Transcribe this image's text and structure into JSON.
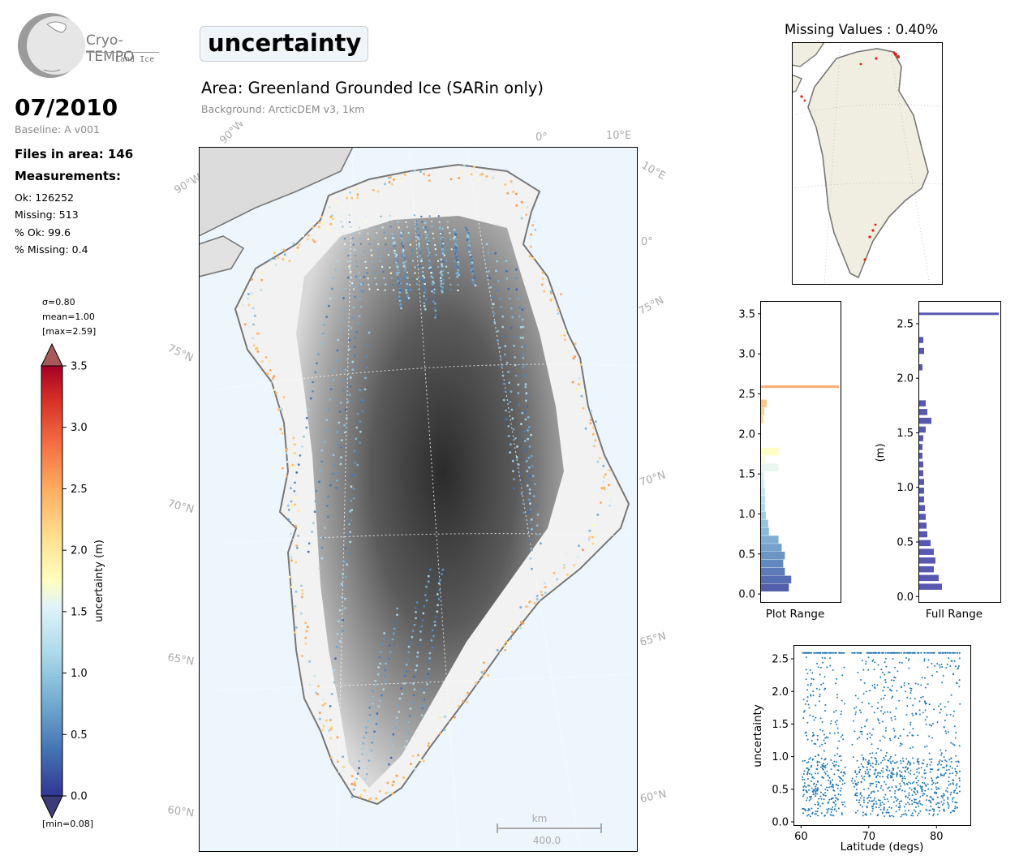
{
  "logo": {
    "name": "Cryo-TEMPO",
    "sub": "Land Ice"
  },
  "header": {
    "title": "uncertainty",
    "area": "Area: Greenland Grounded Ice (SARin only)",
    "background": "Background: ArcticDEM v3, 1km",
    "date": "07/2010",
    "baseline": "Baseline: A v001"
  },
  "stats": {
    "files": "Files in area: 146",
    "measurements_heading": "Measurements:",
    "ok": "Ok: 126252",
    "missing": "Missing: 513",
    "pct_ok": "% Ok: 99.6",
    "pct_missing": "% Missing: 0.4"
  },
  "colorbar": {
    "sigma": "σ=0.80",
    "mean": "mean=1.00",
    "max": "[max=2.59]",
    "min": "[min=0.08]",
    "label": "uncertainty (m)",
    "ticks": [
      "0.0",
      "0.5",
      "1.0",
      "1.5",
      "2.0",
      "2.5",
      "3.0",
      "3.5"
    ],
    "range": [
      0,
      3.5
    ]
  },
  "map": {
    "lon_labels": [
      "90°W",
      "90°W",
      "0°",
      "10°E",
      "10°E",
      "0°"
    ],
    "lat_labels_left": [
      "75°N",
      "70°N",
      "65°N",
      "60°N"
    ],
    "lat_labels_right": [
      "75°N",
      "70°N",
      "65°N",
      "60°N"
    ],
    "scale_unit": "km",
    "scale_value": "400.0",
    "colors": {
      "ocean": "#eef6fd",
      "coast": "#777777",
      "track_low": "#3b5bb8",
      "track_high": "#f28a4a"
    }
  },
  "inset": {
    "title": "Missing Values : 0.40%",
    "land_color": "#efeee0",
    "missing_color": "#e0201b"
  },
  "chart_data": [
    {
      "type": "bar",
      "orientation": "horizontal",
      "name": "histogram",
      "xlabel": "Plot Range",
      "ylim": [
        -0.1,
        3.65
      ],
      "yticks": [
        "0.0",
        "0.5",
        "1.0",
        "1.5",
        "2.0",
        "2.5",
        "3.0",
        "3.5"
      ],
      "bins": [
        {
          "y": 0.08,
          "w": 0.35
        },
        {
          "y": 0.18,
          "w": 0.38
        },
        {
          "y": 0.28,
          "w": 0.3
        },
        {
          "y": 0.38,
          "w": 0.28
        },
        {
          "y": 0.48,
          "w": 0.3
        },
        {
          "y": 0.58,
          "w": 0.26
        },
        {
          "y": 0.68,
          "w": 0.22
        },
        {
          "y": 0.78,
          "w": 0.1
        },
        {
          "y": 0.88,
          "w": 0.09
        },
        {
          "y": 0.98,
          "w": 0.06
        },
        {
          "y": 1.08,
          "w": 0.05
        },
        {
          "y": 1.18,
          "w": 0.05
        },
        {
          "y": 1.28,
          "w": 0.05
        },
        {
          "y": 1.38,
          "w": 0.04
        },
        {
          "y": 1.48,
          "w": 0.04
        },
        {
          "y": 1.58,
          "w": 0.22
        },
        {
          "y": 1.68,
          "w": 0.05
        },
        {
          "y": 1.78,
          "w": 0.22
        },
        {
          "y": 2.18,
          "w": 0.03
        },
        {
          "y": 2.28,
          "w": 0.04
        },
        {
          "y": 2.38,
          "w": 0.07
        },
        {
          "y": 2.59,
          "w": 0.98
        }
      ]
    },
    {
      "type": "bar",
      "orientation": "horizontal",
      "name": "histogram-full",
      "xlabel": "Full Range",
      "ylabel": "(m)",
      "ylim": [
        -0.05,
        2.7
      ],
      "yticks": [
        "0.0",
        "0.5",
        "1.0",
        "1.5",
        "2.0",
        "2.5"
      ],
      "bins": [
        {
          "y": 0.09,
          "w": 0.28
        },
        {
          "y": 0.17,
          "w": 0.24
        },
        {
          "y": 0.25,
          "w": 0.18
        },
        {
          "y": 0.33,
          "w": 0.2
        },
        {
          "y": 0.41,
          "w": 0.18
        },
        {
          "y": 0.49,
          "w": 0.14
        },
        {
          "y": 0.57,
          "w": 0.1
        },
        {
          "y": 0.65,
          "w": 0.09
        },
        {
          "y": 0.73,
          "w": 0.08
        },
        {
          "y": 0.81,
          "w": 0.07
        },
        {
          "y": 0.89,
          "w": 0.06
        },
        {
          "y": 0.97,
          "w": 0.06
        },
        {
          "y": 1.05,
          "w": 0.06
        },
        {
          "y": 1.13,
          "w": 0.05
        },
        {
          "y": 1.21,
          "w": 0.05
        },
        {
          "y": 1.29,
          "w": 0.04
        },
        {
          "y": 1.37,
          "w": 0.04
        },
        {
          "y": 1.45,
          "w": 0.05
        },
        {
          "y": 1.53,
          "w": 0.08
        },
        {
          "y": 1.61,
          "w": 0.15
        },
        {
          "y": 1.69,
          "w": 0.1
        },
        {
          "y": 1.77,
          "w": 0.08
        },
        {
          "y": 2.1,
          "w": 0.04
        },
        {
          "y": 2.25,
          "w": 0.06
        },
        {
          "y": 2.35,
          "w": 0.05
        },
        {
          "y": 2.59,
          "w": 0.98
        }
      ]
    },
    {
      "type": "scatter",
      "name": "latitude-scatter",
      "xlabel": "Latitude (degs)",
      "ylabel": "uncertainty",
      "xlim": [
        59,
        85
      ],
      "ylim": [
        -0.05,
        2.7
      ],
      "xticks": [
        "60",
        "70",
        "80"
      ],
      "yticks": [
        "0.0",
        "0.5",
        "1.0",
        "1.5",
        "2.0",
        "2.5"
      ],
      "color": "#1f77b4",
      "point_count": 1400,
      "gap_lat": [
        66.5,
        67.5
      ],
      "lat_range": [
        60.2,
        83.5
      ],
      "cap_value": 2.59
    }
  ]
}
